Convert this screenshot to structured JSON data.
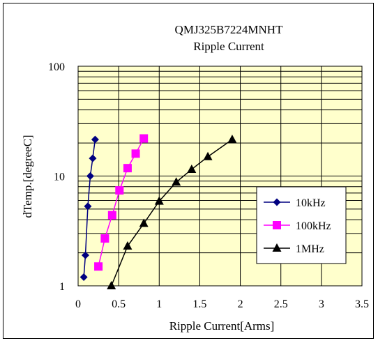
{
  "chart_data": {
    "type": "line",
    "title": "QMJ325B7224MNHT",
    "subtitle": "Ripple Current",
    "xlabel": "Ripple Current[Arms]",
    "ylabel": "dTemp.[degreeC]",
    "xlim": [
      0,
      3.5
    ],
    "ylim": [
      1,
      100
    ],
    "yscale": "log",
    "grid": true,
    "plot_background": "#ffffcc",
    "legend_position": "bottom-right",
    "x_tick_labels": [
      "0",
      "0.5",
      "1",
      "1.5",
      "2",
      "2.5",
      "3",
      "3.5"
    ],
    "y_tick_labels": [
      "1",
      "10",
      "100"
    ],
    "series": [
      {
        "name": "10kHz",
        "color": "#000080",
        "marker": "diamond",
        "x": [
          0.07,
          0.09,
          0.12,
          0.15,
          0.18,
          0.21
        ],
        "y": [
          1.2,
          1.9,
          5.3,
          10,
          14.5,
          21.5
        ]
      },
      {
        "name": "100kHz",
        "color": "#ff00ff",
        "marker": "square",
        "x": [
          0.25,
          0.33,
          0.42,
          0.51,
          0.61,
          0.71,
          0.81
        ],
        "y": [
          1.5,
          2.7,
          4.4,
          7.4,
          11.8,
          16,
          22
        ]
      },
      {
        "name": "1MHz",
        "color": "#000000",
        "marker": "triangle",
        "x": [
          0.41,
          0.61,
          0.81,
          1.0,
          1.21,
          1.4,
          1.6,
          1.9
        ],
        "y": [
          1.0,
          2.3,
          3.7,
          5.9,
          8.8,
          11.5,
          15,
          21.5
        ]
      }
    ]
  }
}
